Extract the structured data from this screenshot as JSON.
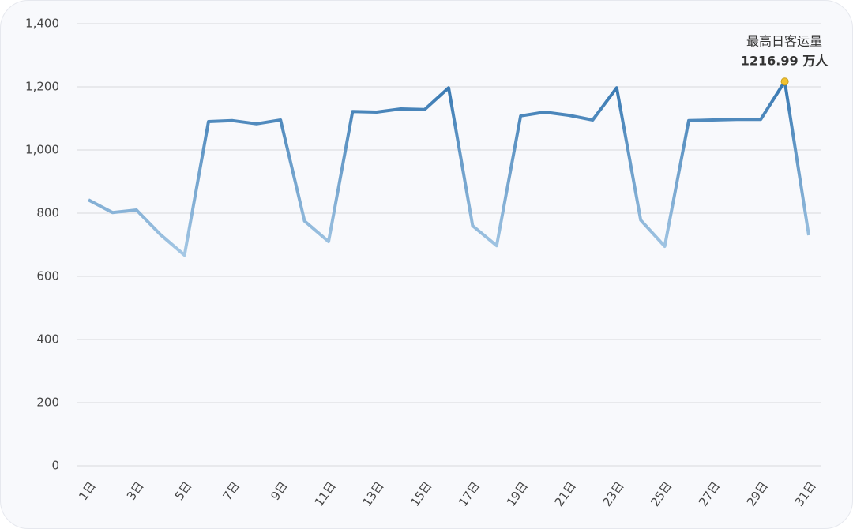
{
  "chart_data": {
    "type": "line",
    "categories": [
      "1日",
      null,
      "3日",
      null,
      "5日",
      null,
      "7日",
      null,
      "9日",
      null,
      "11日",
      null,
      "13日",
      null,
      "15日",
      null,
      "17日",
      null,
      "19日",
      null,
      "21日",
      null,
      "23日",
      null,
      "25日",
      null,
      "27日",
      null,
      "29日",
      null,
      "31日"
    ],
    "values": [
      842,
      802,
      810,
      732,
      667,
      1090,
      1093,
      1083,
      1095,
      775,
      710,
      1122,
      1120,
      1130,
      1128,
      1197,
      760,
      697,
      1108,
      1120,
      1110,
      1095,
      1197,
      778,
      695,
      1093,
      1095,
      1097,
      1097,
      1216.99,
      730
    ],
    "color_low": "#a8cae6",
    "color_high": "#3a7ab3",
    "highlight_color": "#f2c230",
    "ylim": [
      0,
      1400
    ],
    "yticks": [
      0,
      200,
      400,
      600,
      800,
      {
        "value": 1000,
        "label": "1,000"
      },
      {
        "value": 1200,
        "label": "1,200"
      },
      {
        "value": 1400,
        "label": "1,400"
      }
    ],
    "grid": true,
    "annotation": {
      "title": "最高日客运量",
      "label": "1216.99 万人"
    }
  }
}
